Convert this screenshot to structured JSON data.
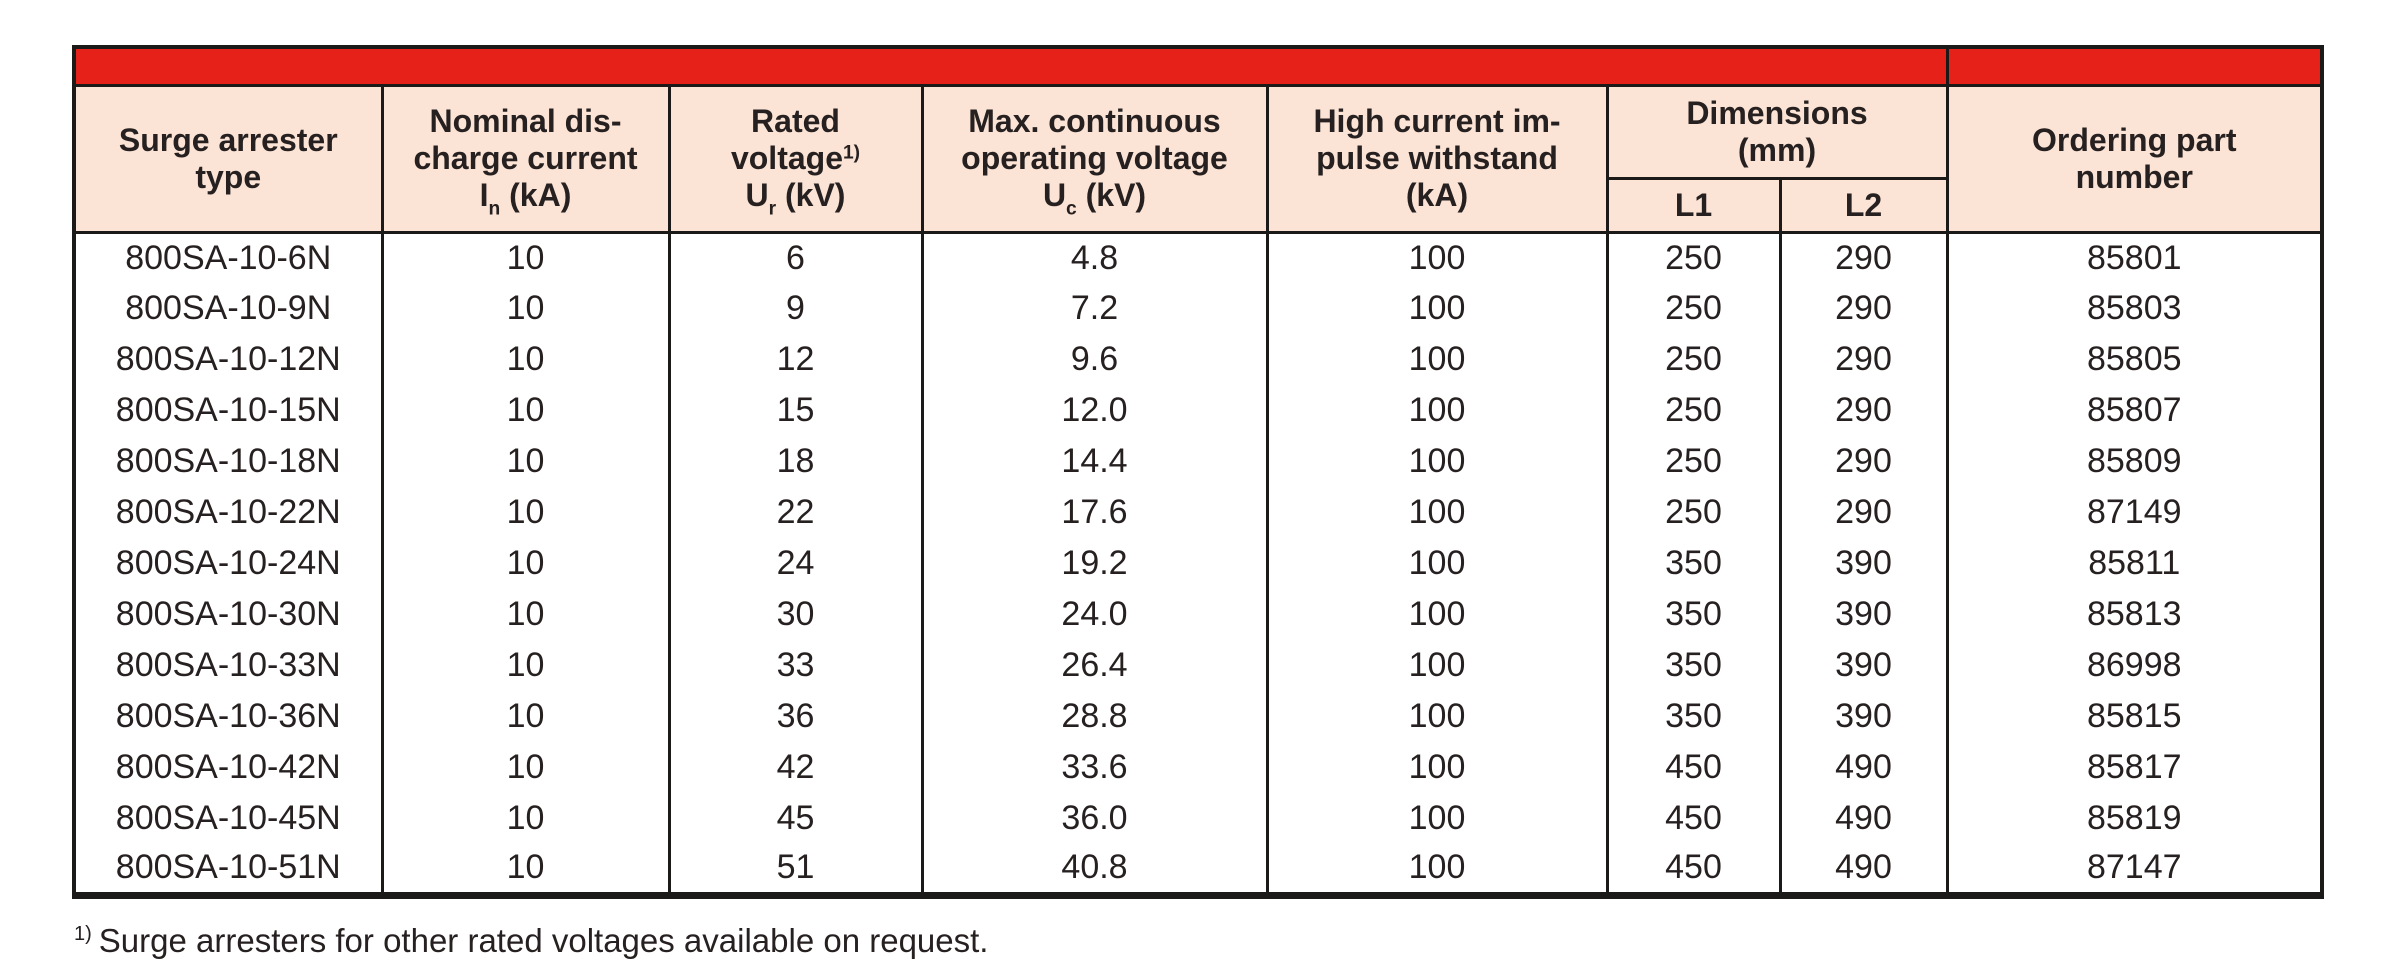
{
  "colors": {
    "band_red": "#e62119",
    "header_bg": "#fbe3d5",
    "border_black": "#1c1a18",
    "text": "#262120",
    "row_bg": "#ffffff"
  },
  "table": {
    "columns": [
      {
        "key": "type",
        "lines": [
          [
            {
              "text": "Surge arrester"
            }
          ],
          [
            {
              "text": "type"
            }
          ]
        ]
      },
      {
        "key": "nominal-discharge-current",
        "lines": [
          [
            {
              "text": "Nominal dis-"
            }
          ],
          [
            {
              "text": "charge current"
            }
          ],
          [
            {
              "text": "I"
            },
            {
              "sub": "n"
            },
            {
              "text": " (kA)"
            }
          ]
        ]
      },
      {
        "key": "rated-voltage",
        "lines": [
          [
            {
              "text": "Rated"
            }
          ],
          [
            {
              "text": "voltage"
            },
            {
              "sup": "1)"
            }
          ],
          [
            {
              "text": "U"
            },
            {
              "sub": "r"
            },
            {
              "text": " (kV)"
            }
          ]
        ]
      },
      {
        "key": "max-continuous-operating-voltage",
        "lines": [
          [
            {
              "text": "Max. continuous"
            }
          ],
          [
            {
              "text": "operating voltage"
            }
          ],
          [
            {
              "text": "U"
            },
            {
              "sub": "c"
            },
            {
              "text": " (kV)"
            }
          ]
        ]
      },
      {
        "key": "high-current-impulse-withstand",
        "lines": [
          [
            {
              "text": "High current im-"
            }
          ],
          [
            {
              "text": "pulse withstand"
            }
          ],
          [
            {
              "text": "(kA)"
            }
          ]
        ]
      },
      {
        "key": "dimensions",
        "lines": [
          [
            {
              "text": "Dimensions"
            }
          ],
          [
            {
              "text": "(mm)"
            }
          ]
        ],
        "subcolumns": [
          "L1",
          "L2"
        ]
      },
      {
        "key": "ordering-part-number",
        "lines": [
          [
            {
              "text": "Ordering part"
            }
          ],
          [
            {
              "text": "number"
            }
          ]
        ]
      }
    ],
    "rows": [
      [
        "800SA-10-6N",
        "10",
        "6",
        "4.8",
        "100",
        "250",
        "290",
        "85801"
      ],
      [
        "800SA-10-9N",
        "10",
        "9",
        "7.2",
        "100",
        "250",
        "290",
        "85803"
      ],
      [
        "800SA-10-12N",
        "10",
        "12",
        "9.6",
        "100",
        "250",
        "290",
        "85805"
      ],
      [
        "800SA-10-15N",
        "10",
        "15",
        "12.0",
        "100",
        "250",
        "290",
        "85807"
      ],
      [
        "800SA-10-18N",
        "10",
        "18",
        "14.4",
        "100",
        "250",
        "290",
        "85809"
      ],
      [
        "800SA-10-22N",
        "10",
        "22",
        "17.6",
        "100",
        "250",
        "290",
        "87149"
      ],
      [
        "800SA-10-24N",
        "10",
        "24",
        "19.2",
        "100",
        "350",
        "390",
        "85811"
      ],
      [
        "800SA-10-30N",
        "10",
        "30",
        "24.0",
        "100",
        "350",
        "390",
        "85813"
      ],
      [
        "800SA-10-33N",
        "10",
        "33",
        "26.4",
        "100",
        "350",
        "390",
        "86998"
      ],
      [
        "800SA-10-36N",
        "10",
        "36",
        "28.8",
        "100",
        "350",
        "390",
        "85815"
      ],
      [
        "800SA-10-42N",
        "10",
        "42",
        "33.6",
        "100",
        "450",
        "490",
        "85817"
      ],
      [
        "800SA-10-45N",
        "10",
        "45",
        "36.0",
        "100",
        "450",
        "490",
        "85819"
      ],
      [
        "800SA-10-51N",
        "10",
        "51",
        "40.8",
        "100",
        "450",
        "490",
        "87147"
      ]
    ]
  },
  "footnote": {
    "marker": "1)",
    "text": "Surge arresters for other rated voltages available on request."
  }
}
